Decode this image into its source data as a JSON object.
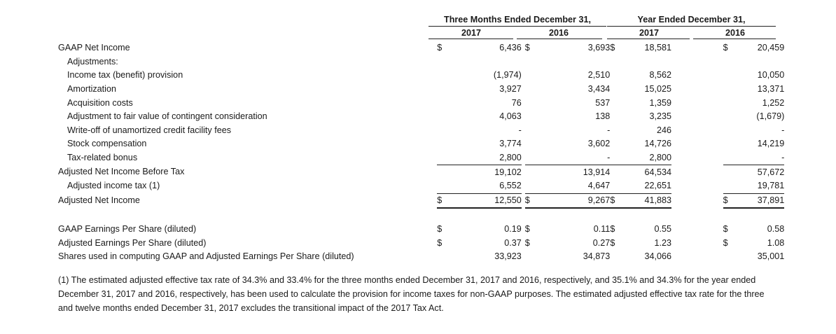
{
  "header": {
    "group1": "Three Months Ended December 31,",
    "group2": "Year Ended December 31,",
    "years": [
      "2017",
      "2016",
      "2017",
      "2016"
    ]
  },
  "rows": [
    {
      "label": "GAAP Net Income",
      "indent": false,
      "dollar": true,
      "values": [
        "6,436",
        "3,693",
        "18,581",
        "20,459"
      ],
      "top_border": false,
      "bottom_border": false
    },
    {
      "label": "Adjustments:",
      "indent": true,
      "dollar": false,
      "values": [
        "",
        "",
        "",
        ""
      ],
      "top_border": false,
      "bottom_border": false
    },
    {
      "label": "Income tax (benefit) provision",
      "indent": true,
      "dollar": false,
      "values": [
        "(1,974)",
        "2,510",
        "8,562",
        "10,050"
      ],
      "top_border": false,
      "bottom_border": false
    },
    {
      "label": "Amortization",
      "indent": true,
      "dollar": false,
      "values": [
        "3,927",
        "3,434",
        "15,025",
        "13,371"
      ],
      "top_border": false,
      "bottom_border": false
    },
    {
      "label": "Acquisition costs",
      "indent": true,
      "dollar": false,
      "values": [
        "76",
        "537",
        "1,359",
        "1,252"
      ],
      "top_border": false,
      "bottom_border": false
    },
    {
      "label": "Adjustment to fair value of contingent consideration",
      "indent": true,
      "dollar": false,
      "values": [
        "4,063",
        "138",
        "3,235",
        "(1,679)"
      ],
      "top_border": false,
      "bottom_border": false
    },
    {
      "label": "Write-off of unamortized credit facility fees",
      "indent": true,
      "dollar": false,
      "values": [
        "-",
        "-",
        "246",
        "-"
      ],
      "top_border": false,
      "bottom_border": false
    },
    {
      "label": "Stock compensation",
      "indent": true,
      "dollar": false,
      "values": [
        "3,774",
        "3,602",
        "14,726",
        "14,219"
      ],
      "top_border": false,
      "bottom_border": false
    },
    {
      "label": "Tax-related bonus",
      "indent": true,
      "dollar": false,
      "values": [
        "2,800",
        "-",
        "2,800",
        "-"
      ],
      "top_border": false,
      "bottom_border": false
    },
    {
      "label": "Adjusted Net Income Before Tax",
      "indent": false,
      "dollar": false,
      "values": [
        "19,102",
        "13,914",
        "64,534",
        "57,672"
      ],
      "top_border": true,
      "bottom_border": false
    },
    {
      "label": "Adjusted income tax (1)",
      "indent": true,
      "dollar": false,
      "values": [
        "6,552",
        "4,647",
        "22,651",
        "19,781"
      ],
      "top_border": false,
      "bottom_border": false
    },
    {
      "label": "Adjusted Net Income",
      "indent": false,
      "dollar": true,
      "values": [
        "12,550",
        "9,267",
        "41,883",
        "37,891"
      ],
      "top_border": true,
      "bottom_border": true
    },
    {
      "label": "",
      "indent": false,
      "dollar": false,
      "values": [
        "",
        "",
        "",
        ""
      ],
      "top_border": false,
      "bottom_border": false,
      "gap": true
    },
    {
      "label": "GAAP Earnings Per Share (diluted)",
      "indent": false,
      "dollar": true,
      "values": [
        "0.19",
        "0.11",
        "0.55",
        "0.58"
      ],
      "top_border": false,
      "bottom_border": false
    },
    {
      "label": "Adjusted Earnings Per Share (diluted)",
      "indent": false,
      "dollar": true,
      "values": [
        "0.37",
        "0.27",
        "1.23",
        "1.08"
      ],
      "top_border": false,
      "bottom_border": false
    },
    {
      "label": "Shares used in computing GAAP and Adjusted Earnings Per Share (diluted)",
      "indent": false,
      "dollar": false,
      "values": [
        "33,923",
        "34,873",
        "34,066",
        "35,001"
      ],
      "top_border": false,
      "bottom_border": false
    }
  ],
  "dollar_sign": "$",
  "footnote": "(1) The estimated adjusted effective tax rate of 34.3% and 33.4% for the three months ended December 31, 2017 and 2016, respectively, and 35.1% and 34.3% for the year ended December 31, 2017 and 2016, respectively, has been used to calculate the provision for income taxes for non-GAAP purposes. The estimated adjusted effective tax rate for the three and twelve months ended December 31, 2017 excludes the transitional impact of the 2017 Tax Act."
}
